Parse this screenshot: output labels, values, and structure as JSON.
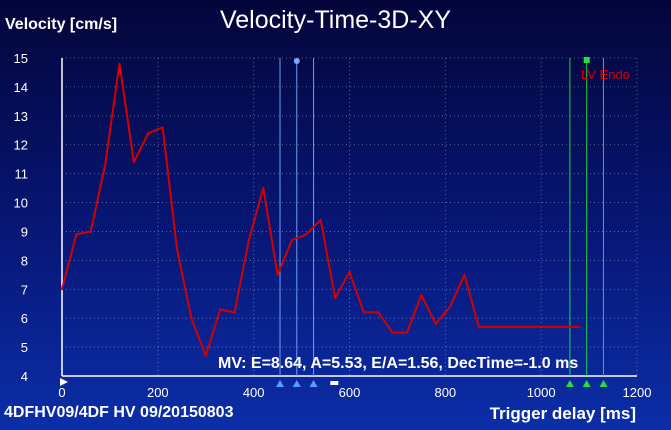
{
  "title": "Velocity-Time-3D-XY",
  "study_label": "4DFHV09/4DF HV 09/20150803",
  "chart_data": {
    "type": "line",
    "title": "Velocity-Time-3D-XY",
    "xlabel": "Trigger delay [ms]",
    "ylabel": "Velocity [cm/s]",
    "xlim": [
      0,
      1200
    ],
    "ylim": [
      4,
      15
    ],
    "xticks": [
      "0",
      "200",
      "400",
      "600",
      "800",
      "1000",
      "1200"
    ],
    "yticks": [
      "4",
      "5",
      "6",
      "7",
      "8",
      "9",
      "10",
      "11",
      "12",
      "13",
      "14",
      "15"
    ],
    "grid": true,
    "series": [
      {
        "name": "LV Endo",
        "color": "#d40000",
        "x": [
          0,
          30,
          60,
          90,
          120,
          150,
          180,
          210,
          240,
          270,
          300,
          330,
          360,
          390,
          420,
          450,
          480,
          510,
          540,
          570,
          600,
          630,
          660,
          690,
          720,
          750,
          780,
          810,
          840,
          870,
          900,
          930,
          960,
          990,
          1020,
          1050,
          1080
        ],
        "y": [
          7.0,
          8.9,
          9.0,
          11.3,
          14.8,
          11.4,
          12.4,
          12.6,
          8.4,
          6.0,
          4.7,
          6.3,
          6.2,
          8.7,
          10.5,
          7.5,
          8.7,
          8.9,
          9.4,
          6.7,
          7.6,
          6.2,
          6.2,
          5.5,
          5.5,
          6.8,
          5.8,
          6.4,
          7.5,
          5.7,
          5.7,
          5.7,
          5.7,
          5.7,
          5.7,
          5.7,
          5.7
        ]
      }
    ],
    "markers": {
      "blue_lines_ms": [
        455,
        490,
        525
      ],
      "green_lines_ms": [
        1060,
        1095,
        1130
      ]
    },
    "annotation": "MV: E=8.64, A=5.53, E/A=1.56, DecTime=-1.0 ms",
    "legend": "LV Endo",
    "legend_position": "top-right"
  }
}
